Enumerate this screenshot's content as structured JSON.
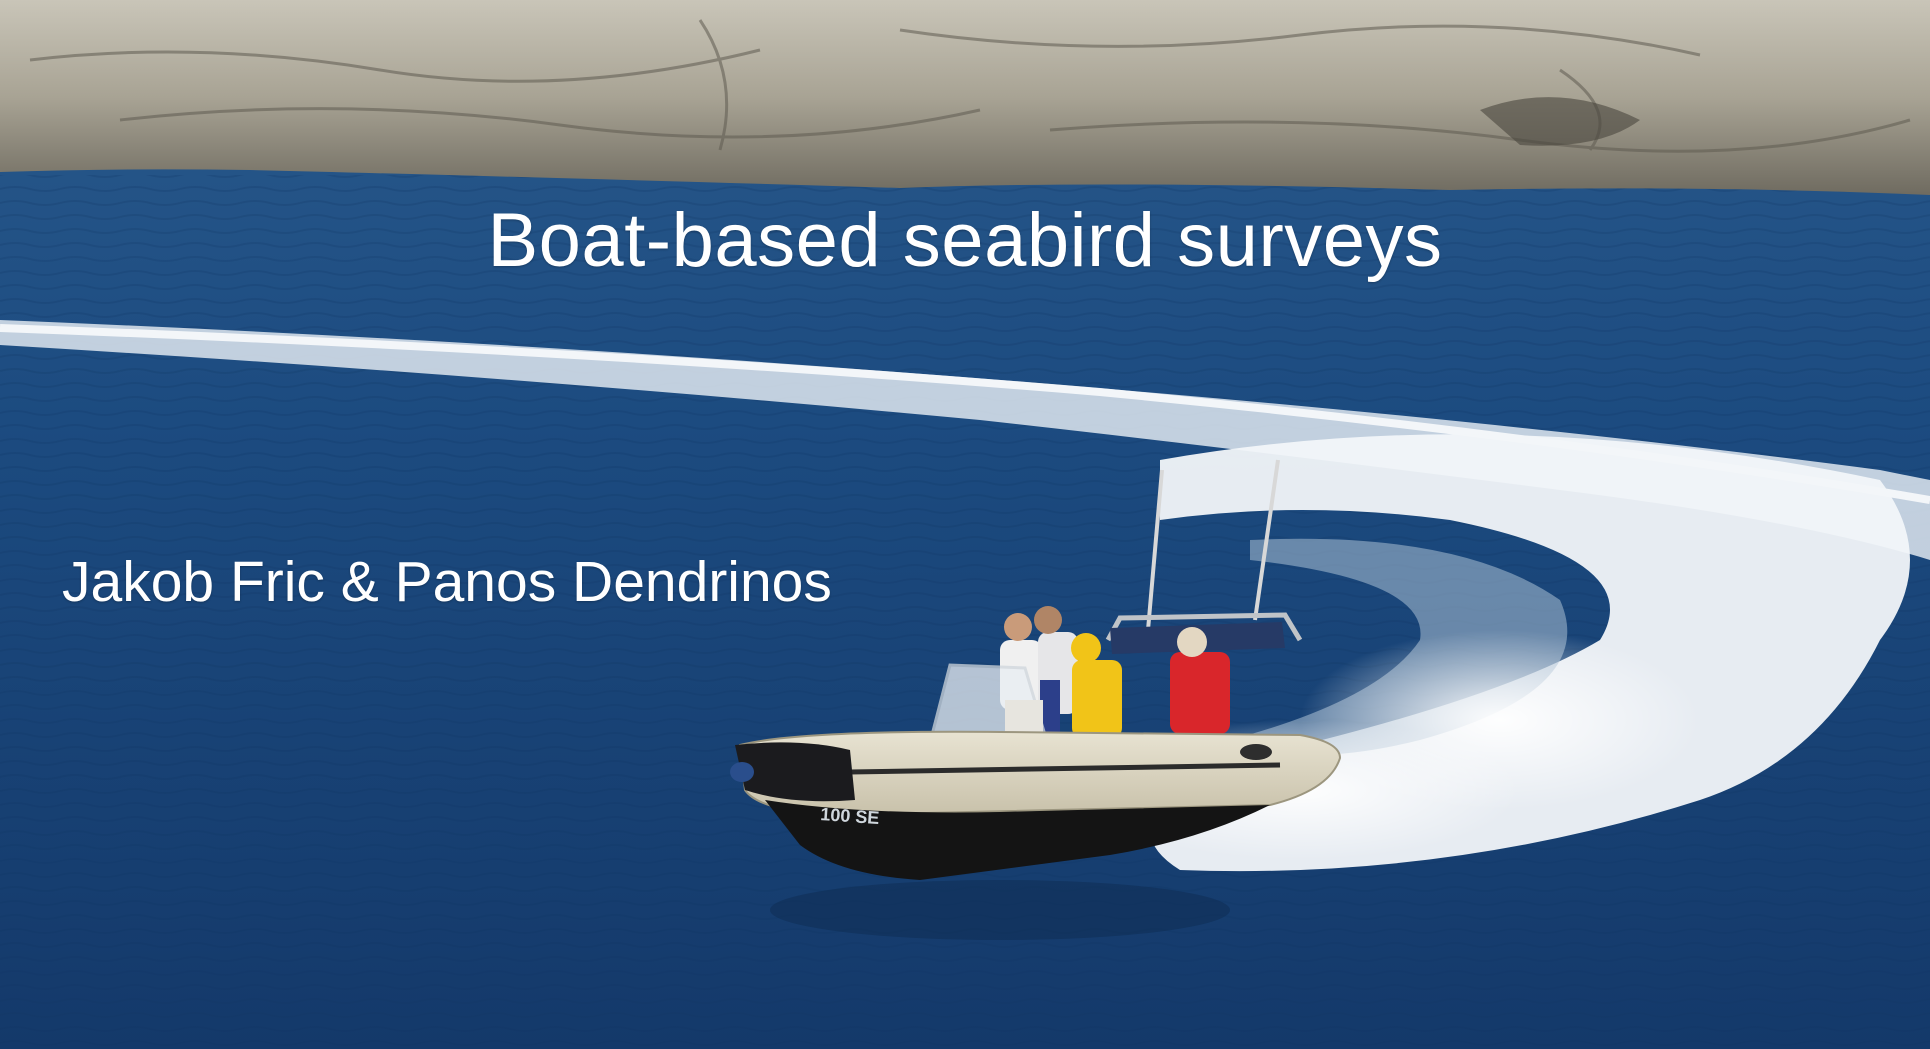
{
  "slide": {
    "title": "Boat-based seabird surveys",
    "subtitle": "Jakob Fric & Panos Dendrinos",
    "boat_hull_text": "100 SE"
  },
  "colors": {
    "sea_deep": "#163f6e",
    "sea_mid": "#1f5286",
    "cliff": "#b5b0a2",
    "wake": "#f4f7fa",
    "text": "#ffffff"
  }
}
